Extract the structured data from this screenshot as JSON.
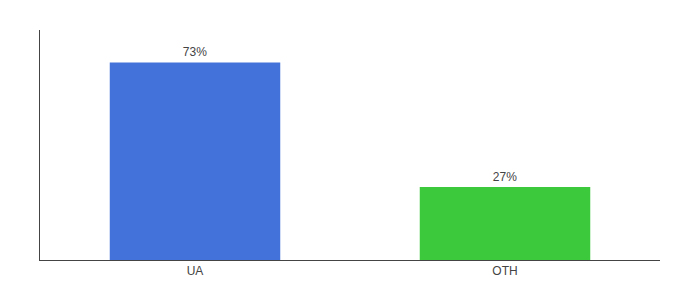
{
  "chart_data": {
    "type": "bar",
    "categories": [
      "UA",
      "OTH"
    ],
    "values": [
      73,
      27
    ],
    "value_labels": [
      "73%",
      "27%"
    ],
    "colors": [
      "#4472db",
      "#3cc93c"
    ],
    "ylim": [
      0,
      85
    ],
    "data_labels": true,
    "tick_labels": "x",
    "grid": false
  }
}
